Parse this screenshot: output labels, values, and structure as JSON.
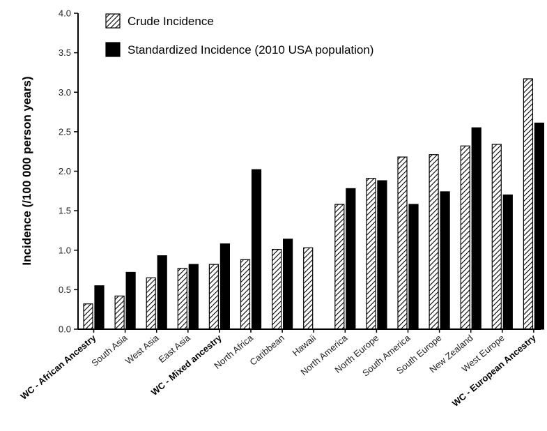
{
  "chart_data": {
    "type": "bar",
    "title": "",
    "xlabel": "",
    "ylabel": "Incidence (/100 000 person years)",
    "ylim": [
      0,
      4.0
    ],
    "yticks": [
      "0.0",
      "0.5",
      "1.0",
      "1.5",
      "2.0",
      "2.5",
      "3.0",
      "3.5",
      "4.0"
    ],
    "grid": false,
    "legend_position": "top-left",
    "categories": [
      "WC - African Ancestry",
      "South Asia",
      "West Asia",
      "East Asia",
      "WC - Mixed ancestry",
      "North Africa",
      "Caribbean",
      "Hawaii",
      "North America",
      "North Europe",
      "South America",
      "South Europe",
      "New Zealand",
      "West Europe",
      "WC - European Ancestry"
    ],
    "bold_categories": [
      "WC - African Ancestry",
      "WC - Mixed ancestry",
      "WC - European Ancestry"
    ],
    "series": [
      {
        "name": "Crude Incidence",
        "style": "hatched",
        "color": "#000000",
        "values": [
          0.32,
          0.42,
          0.65,
          0.77,
          0.82,
          0.88,
          1.01,
          1.03,
          1.58,
          1.91,
          2.18,
          2.21,
          2.32,
          2.34,
          3.17
        ]
      },
      {
        "name": "Standardized Incidence (2010 USA population)",
        "style": "solid",
        "color": "#000000",
        "values": [
          0.55,
          0.72,
          0.93,
          0.82,
          1.08,
          2.02,
          1.14,
          null,
          1.78,
          1.88,
          1.58,
          1.74,
          2.55,
          1.7,
          2.61
        ]
      }
    ]
  }
}
